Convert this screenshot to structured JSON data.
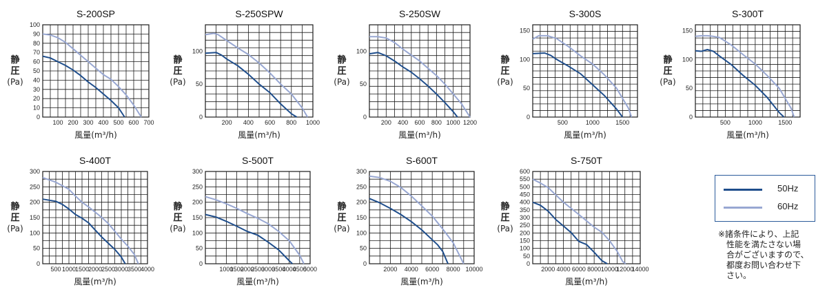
{
  "colors": {
    "hz50": "#1f4e8c",
    "hz60": "#98a7d2",
    "grid": "#1a1a1a"
  },
  "legend": {
    "hz50": "50Hz",
    "hz60": "60Hz"
  },
  "note": {
    "lines": [
      "※諸条件により、上記",
      "性能を満たさない場",
      "合がございますので、",
      "都度お問い合わせ下",
      "さい。"
    ]
  },
  "chart_data": [
    {
      "type": "line",
      "title": "S-200SP",
      "ylabel": "静圧(Pa)",
      "xlabel": "風量(m³/h)",
      "xlim": [
        0,
        700
      ],
      "ylim": [
        0,
        100
      ],
      "x_ticks": [
        100,
        200,
        300,
        400,
        500,
        600,
        700
      ],
      "y_ticks": [
        0,
        10,
        20,
        30,
        40,
        50,
        60,
        70,
        80,
        90,
        100
      ],
      "grid": true,
      "series": [
        {
          "name": "50Hz",
          "x": [
            0,
            50,
            100,
            150,
            200,
            250,
            300,
            350,
            400,
            450,
            500,
            540
          ],
          "y": [
            66,
            64,
            60,
            56,
            51,
            45,
            38,
            32,
            25,
            18,
            10,
            0
          ]
        },
        {
          "name": "60Hz",
          "x": [
            0,
            50,
            100,
            150,
            200,
            250,
            300,
            350,
            400,
            450,
            500,
            550,
            600,
            650
          ],
          "y": [
            90,
            89,
            86,
            81,
            74,
            67,
            60,
            53,
            46,
            41,
            33,
            24,
            13,
            0
          ]
        }
      ]
    },
    {
      "type": "line",
      "title": "S-250SPW",
      "ylabel": "静圧(Pa)",
      "xlabel": "風量(m³/h)",
      "xlim": [
        0,
        1000
      ],
      "ylim": [
        0,
        140
      ],
      "x_ticks": [
        200,
        400,
        600,
        800,
        1000
      ],
      "y_ticks": [
        0,
        50,
        100
      ],
      "grid": true,
      "series": [
        {
          "name": "50Hz",
          "x": [
            0,
            100,
            150,
            200,
            300,
            400,
            500,
            600,
            700,
            800,
            850
          ],
          "y": [
            97,
            98,
            94,
            88,
            78,
            65,
            50,
            37,
            20,
            5,
            0
          ]
        },
        {
          "name": "60Hz",
          "x": [
            0,
            80,
            120,
            200,
            300,
            400,
            500,
            600,
            700,
            800,
            900,
            950
          ],
          "y": [
            125,
            127,
            125,
            116,
            105,
            95,
            82,
            67,
            50,
            35,
            14,
            0
          ]
        }
      ]
    },
    {
      "type": "line",
      "title": "S-250SW",
      "ylabel": "静圧(Pa)",
      "xlabel": "風量(m³/h)",
      "xlim": [
        0,
        1200
      ],
      "ylim": [
        0,
        140
      ],
      "x_ticks": [
        200,
        400,
        600,
        800,
        1000,
        1200
      ],
      "y_ticks": [
        0,
        50,
        100
      ],
      "grid": true,
      "series": [
        {
          "name": "50Hz",
          "x": [
            0,
            100,
            200,
            300,
            400,
            500,
            600,
            700,
            800,
            900,
            1000,
            1050
          ],
          "y": [
            96,
            98,
            93,
            85,
            76,
            68,
            58,
            47,
            35,
            22,
            8,
            0
          ]
        },
        {
          "name": "60Hz",
          "x": [
            0,
            100,
            200,
            300,
            400,
            500,
            600,
            700,
            800,
            900,
            1000,
            1100,
            1200
          ],
          "y": [
            122,
            122,
            120,
            113,
            103,
            94,
            85,
            74,
            63,
            50,
            35,
            20,
            0
          ]
        }
      ]
    },
    {
      "type": "line",
      "title": "S-300S",
      "ylabel": "静圧(Pa)",
      "xlabel": "風量(m³/h)",
      "xlim": [
        0,
        1750
      ],
      "ylim": [
        0,
        160
      ],
      "x_ticks": [
        500,
        1000,
        1500
      ],
      "y_ticks": [
        0,
        50,
        100,
        150
      ],
      "grid": true,
      "series": [
        {
          "name": "50Hz",
          "x": [
            0,
            200,
            300,
            400,
            600,
            800,
            1000,
            1200,
            1400,
            1500
          ],
          "y": [
            110,
            111,
            107,
            100,
            88,
            75,
            56,
            37,
            14,
            0
          ]
        },
        {
          "name": "60Hz",
          "x": [
            0,
            100,
            250,
            400,
            600,
            800,
            1000,
            1200,
            1400,
            1600,
            1650
          ],
          "y": [
            135,
            141,
            141,
            136,
            122,
            106,
            92,
            73,
            50,
            15,
            0
          ]
        }
      ]
    },
    {
      "type": "line",
      "title": "S-300T",
      "ylabel": "静圧(Pa)",
      "xlabel": "風量(m³/h)",
      "xlim": [
        0,
        1750
      ],
      "ylim": [
        0,
        160
      ],
      "x_ticks": [
        500,
        1000,
        1500
      ],
      "y_ticks": [
        0,
        50,
        100,
        150
      ],
      "grid": true,
      "series": [
        {
          "name": "50Hz",
          "x": [
            0,
            100,
            200,
            300,
            400,
            600,
            800,
            1000,
            1200,
            1400,
            1480
          ],
          "y": [
            115,
            114,
            117,
            114,
            106,
            91,
            72,
            55,
            34,
            8,
            0
          ]
        },
        {
          "name": "60Hz",
          "x": [
            0,
            100,
            200,
            300,
            400,
            600,
            800,
            1000,
            1200,
            1400,
            1600,
            1650
          ],
          "y": [
            140,
            141,
            141,
            140,
            138,
            125,
            108,
            92,
            72,
            50,
            15,
            0
          ]
        }
      ]
    },
    {
      "type": "line",
      "title": "S-400T",
      "ylabel": "静圧(Pa)",
      "xlabel": "風量(m³/h)",
      "xlim": [
        0,
        4000
      ],
      "ylim": [
        0,
        300
      ],
      "x_ticks": [
        500,
        1000,
        1500,
        2000,
        2500,
        3000,
        3500,
        4000
      ],
      "y_ticks": [
        0,
        50,
        100,
        150,
        200,
        250,
        300
      ],
      "grid": true,
      "series": [
        {
          "name": "50Hz",
          "x": [
            0,
            500,
            750,
            1000,
            1250,
            1500,
            1750,
            2000,
            2250,
            2500,
            2750,
            3000,
            3150
          ],
          "y": [
            210,
            203,
            193,
            178,
            160,
            148,
            133,
            110,
            87,
            67,
            47,
            22,
            0
          ]
        },
        {
          "name": "60Hz",
          "x": [
            0,
            500,
            1000,
            1250,
            1500,
            1750,
            2000,
            2250,
            2500,
            2750,
            3000,
            3250,
            3500,
            3650
          ],
          "y": [
            280,
            265,
            242,
            220,
            200,
            185,
            168,
            151,
            131,
            106,
            80,
            57,
            30,
            0
          ]
        }
      ]
    },
    {
      "type": "line",
      "title": "S-500T",
      "ylabel": "静圧(Pa)",
      "xlabel": "風量(m³/h)",
      "xlim": [
        0,
        5000
      ],
      "ylim": [
        0,
        300
      ],
      "x_ticks": [
        1000,
        1500,
        2000,
        2500,
        3000,
        3500,
        4000,
        4500,
        5000
      ],
      "y_ticks": [
        0,
        50,
        100,
        150,
        200,
        250,
        300
      ],
      "grid": true,
      "series": [
        {
          "name": "50Hz",
          "x": [
            0,
            500,
            1000,
            1500,
            2000,
            2500,
            3000,
            3500,
            4000,
            4150
          ],
          "y": [
            160,
            152,
            138,
            122,
            105,
            93,
            70,
            45,
            10,
            0
          ]
        },
        {
          "name": "60Hz",
          "x": [
            0,
            500,
            1000,
            1500,
            2000,
            2500,
            3000,
            3500,
            4000,
            4500,
            4700
          ],
          "y": [
            218,
            208,
            195,
            180,
            163,
            148,
            130,
            105,
            75,
            28,
            0
          ]
        }
      ]
    },
    {
      "type": "line",
      "title": "S-600T",
      "ylabel": "静圧(Pa)",
      "xlabel": "風量(m³/h)",
      "xlim": [
        0,
        10000
      ],
      "ylim": [
        0,
        300
      ],
      "x_ticks": [
        2000,
        4000,
        6000,
        8000,
        10000
      ],
      "y_ticks": [
        0,
        50,
        100,
        150,
        200,
        250,
        300
      ],
      "grid": true,
      "series": [
        {
          "name": "50Hz",
          "x": [
            0,
            1000,
            2000,
            3000,
            4000,
            5000,
            6000,
            6500,
            7000,
            7500
          ],
          "y": [
            212,
            198,
            180,
            160,
            137,
            110,
            78,
            62,
            40,
            0
          ]
        },
        {
          "name": "60Hz",
          "x": [
            0,
            1000,
            2000,
            3000,
            4000,
            5000,
            6000,
            7000,
            8000,
            9000
          ],
          "y": [
            285,
            280,
            268,
            248,
            220,
            188,
            155,
            113,
            68,
            0
          ]
        }
      ]
    },
    {
      "type": "line",
      "title": "S-750T",
      "ylabel": "静圧(Pa)",
      "xlabel": "風量(m³/h)",
      "xlim": [
        0,
        14000
      ],
      "ylim": [
        0,
        600
      ],
      "x_ticks": [
        2000,
        4000,
        6000,
        8000,
        10000,
        12000,
        14000
      ],
      "y_ticks": [
        0,
        50,
        100,
        150,
        200,
        250,
        300,
        350,
        400,
        450,
        500,
        550,
        600
      ],
      "grid": true,
      "series": [
        {
          "name": "50Hz",
          "x": [
            0,
            1000,
            2000,
            3000,
            4000,
            5000,
            6000,
            7000,
            8000,
            9000,
            9700
          ],
          "y": [
            400,
            380,
            342,
            288,
            245,
            203,
            145,
            125,
            75,
            20,
            0
          ]
        },
        {
          "name": "60Hz",
          "x": [
            0,
            1000,
            2000,
            4000,
            6000,
            8000,
            9000,
            10000,
            11000,
            11700,
            12100
          ],
          "y": [
            550,
            525,
            495,
            400,
            320,
            238,
            205,
            150,
            80,
            15,
            0
          ]
        }
      ]
    }
  ]
}
